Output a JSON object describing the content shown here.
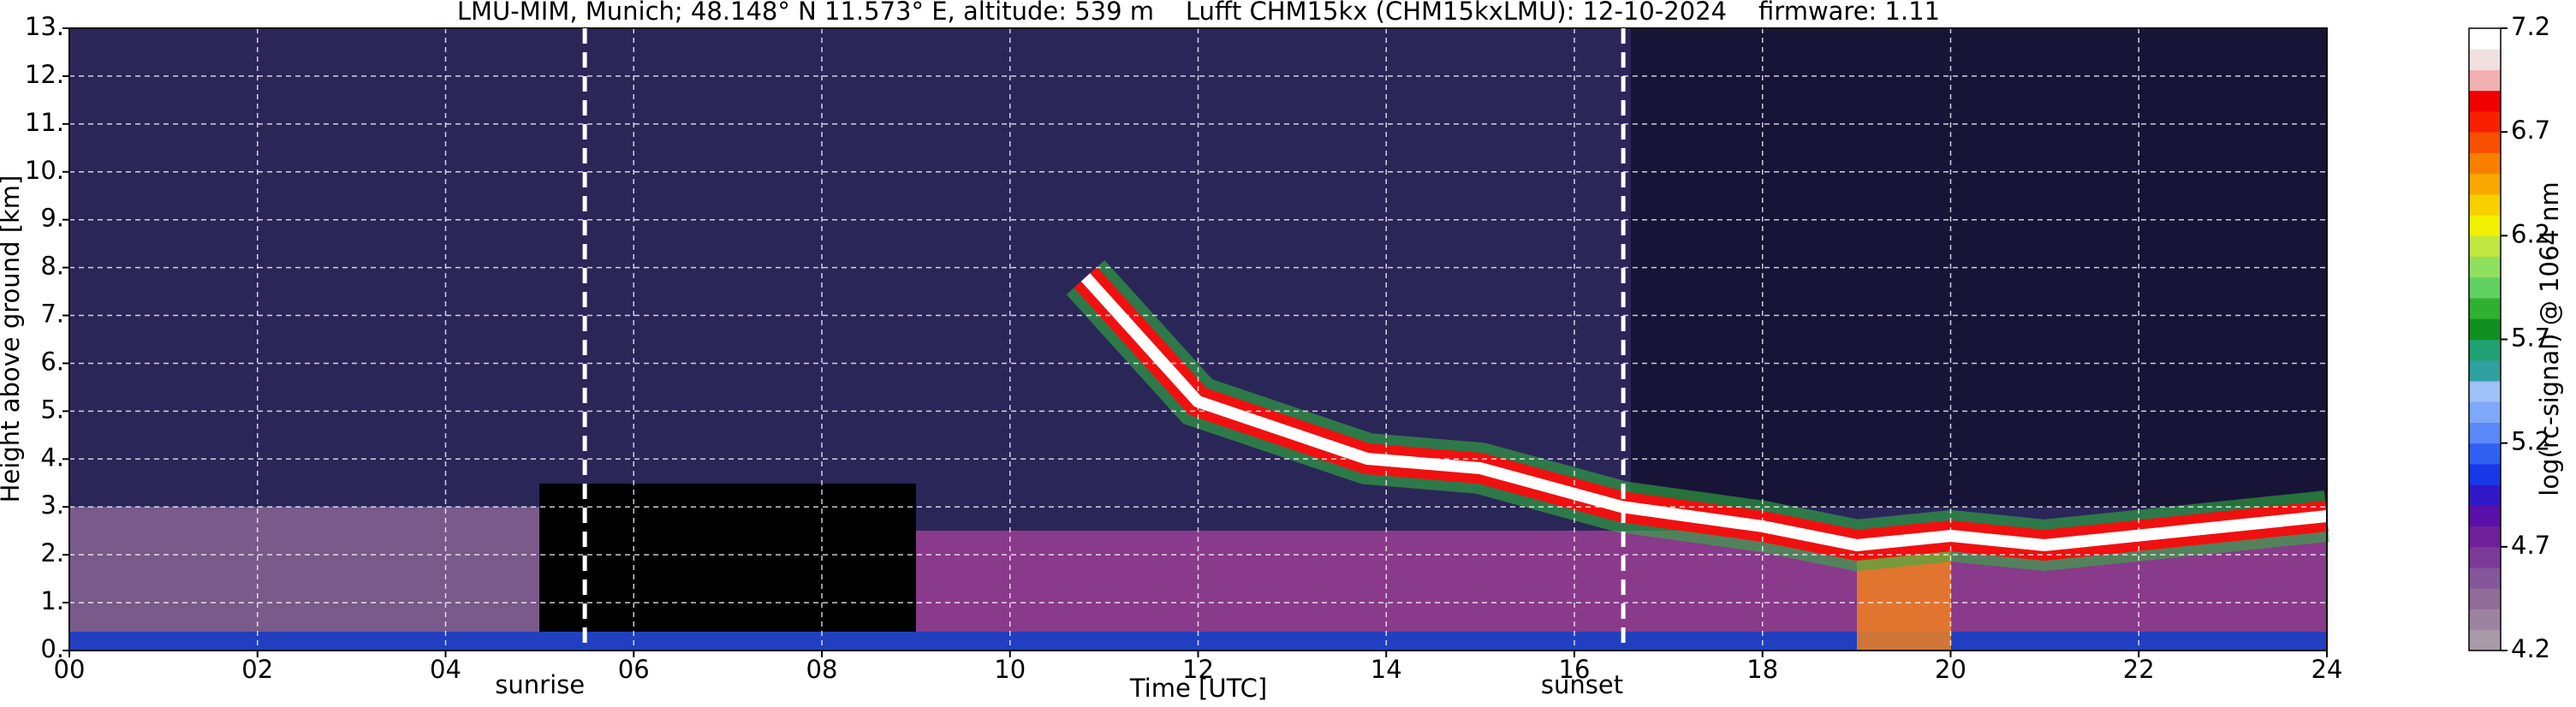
{
  "chart_data": {
    "type": "heatmap",
    "title": "LMU-MIM, Munich; 48.148° N 11.573° E, altitude: 539 m    Lufft CHM15kx (CHM15kxLMU): 12-10-2024    firmware: 1.11",
    "xlabel": "Time [UTC]",
    "ylabel": "Height above ground [km]",
    "xlim": [
      0,
      24
    ],
    "xticks": [
      {
        "value": 0,
        "label": "00"
      },
      {
        "value": 2,
        "label": "02"
      },
      {
        "value": 4,
        "label": "04"
      },
      {
        "value": 6,
        "label": "06"
      },
      {
        "value": 8,
        "label": "08"
      },
      10,
      12,
      14,
      16,
      18,
      20,
      22,
      24
    ],
    "ylim": [
      0,
      13
    ],
    "yticks": [
      {
        "value": 0,
        "label": "0."
      },
      {
        "value": 1,
        "label": "1."
      },
      {
        "value": 2,
        "label": "2."
      },
      {
        "value": 3,
        "label": "3."
      },
      {
        "value": 4,
        "label": "4."
      },
      {
        "value": 5,
        "label": "5."
      },
      {
        "value": 6,
        "label": "6."
      },
      {
        "value": 7,
        "label": "7."
      },
      {
        "value": 8,
        "label": "8."
      },
      {
        "value": 9,
        "label": "9."
      },
      {
        "value": 10,
        "label": "10."
      },
      {
        "value": 11,
        "label": "11."
      },
      {
        "value": 12,
        "label": "12."
      },
      {
        "value": 13,
        "label": "13."
      }
    ],
    "grid": true,
    "annotations": [
      {
        "label": "sunrise",
        "x": 5.48
      },
      {
        "label": "sunset",
        "x": 16.52
      }
    ],
    "colorbar": {
      "label": "log(rc-signal) @ 1064 nm",
      "lim": [
        4.2,
        7.2
      ],
      "ticks": [
        4.2,
        4.7,
        5.2,
        5.7,
        6.2,
        6.7,
        7.2
      ],
      "colors": [
        "#a89aa8",
        "#9c84a0",
        "#906c98",
        "#86569a",
        "#7c3a98",
        "#70209a",
        "#5a10a8",
        "#3018c8",
        "#1838e8",
        "#3060f0",
        "#5a88f8",
        "#80a8f8",
        "#a0c0f8",
        "#30a0a0",
        "#20a070",
        "#109020",
        "#30b030",
        "#60d060",
        "#90e060",
        "#c0e840",
        "#f0f000",
        "#f8d000",
        "#f8a800",
        "#f88000",
        "#f85000",
        "#f82000",
        "#f00000",
        "#f0b0b0",
        "#f0e0e0",
        "#ffffff"
      ]
    }
  }
}
